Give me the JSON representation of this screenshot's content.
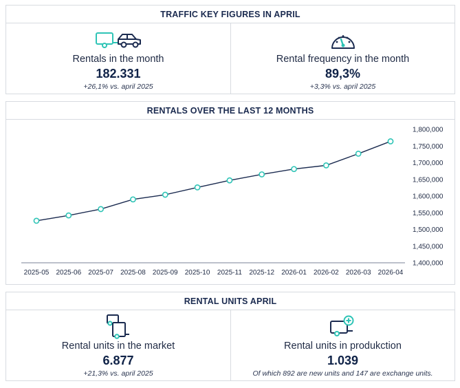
{
  "traffic": {
    "title": "TRAFFIC KEY FIGURES IN APRIL",
    "left": {
      "label": "Rentals in the month",
      "value": "182.331",
      "sub": "+26,1% vs. april 2025",
      "icon": "trailer-car-icon"
    },
    "right": {
      "label": "Rental frequency in the month",
      "value": "89,3%",
      "sub": "+3,3% vs. april 2025",
      "icon": "speedometer-icon"
    }
  },
  "chart_section": {
    "title": "RENTALS OVER THE LAST 12 MONTHS"
  },
  "units": {
    "title": "RENTAL UNITS APRIL",
    "left": {
      "label": "Rental units in the market",
      "value": "6.877",
      "sub": "+21,3% vs. april 2025",
      "icon": "trailers-icon"
    },
    "right": {
      "label": "Rental units in produkction",
      "value": "1.039",
      "sub": "Of which 892 are new units and 147 are exchange units.",
      "icon": "trailer-add-icon"
    }
  },
  "colors": {
    "accent": "#2ec4b6",
    "line": "#1a2a4f",
    "border": "#d7dbe0",
    "text": "#1f2a44"
  },
  "chart_data": {
    "type": "line",
    "title": "RENTALS OVER THE LAST 12 MONTHS",
    "xlabel": "",
    "ylabel": "",
    "categories": [
      "2025-05",
      "2025-06",
      "2025-07",
      "2025-08",
      "2025-09",
      "2025-10",
      "2025-11",
      "2025-12",
      "2026-01",
      "2026-02",
      "2026-03",
      "2026-04"
    ],
    "series": [
      {
        "values": [
          1526000,
          1542000,
          1561000,
          1590000,
          1604000,
          1626000,
          1647000,
          1665000,
          1681000,
          1692000,
          1727000,
          1764000
        ]
      }
    ],
    "ylim": [
      1400000,
      1800000
    ],
    "yticks": [
      "1,800,000",
      "1,750,000",
      "1,700,000",
      "1,650,000",
      "1,600,000",
      "1,550,000",
      "1,500,000",
      "1,450,000",
      "1,400,000"
    ],
    "ytick_values": [
      1800000,
      1750000,
      1700000,
      1650000,
      1600000,
      1550000,
      1500000,
      1450000,
      1400000
    ],
    "grid": false,
    "legend": "none"
  }
}
